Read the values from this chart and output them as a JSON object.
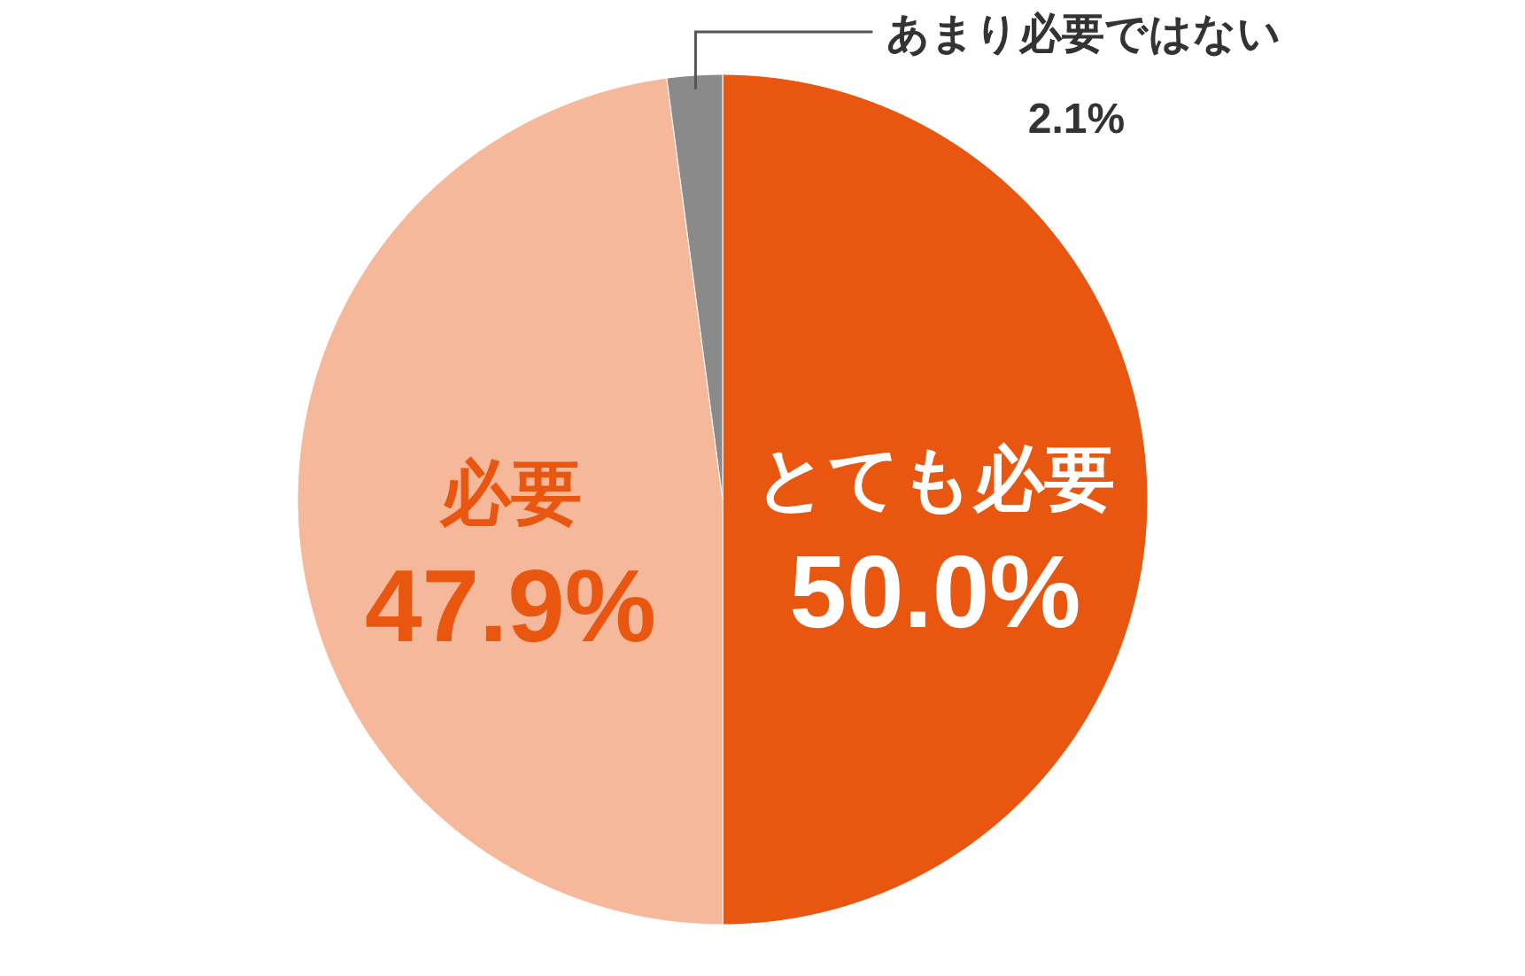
{
  "chart_data": {
    "type": "pie",
    "categories": [
      "とても必要",
      "必要",
      "あまり必要ではない"
    ],
    "values": [
      50.0,
      47.9,
      2.1
    ],
    "colors": [
      "#e8560f",
      "#f6b89a",
      "#8a8a8a"
    ],
    "value_labels": [
      "50.0%",
      "47.9%",
      "2.1%"
    ]
  }
}
